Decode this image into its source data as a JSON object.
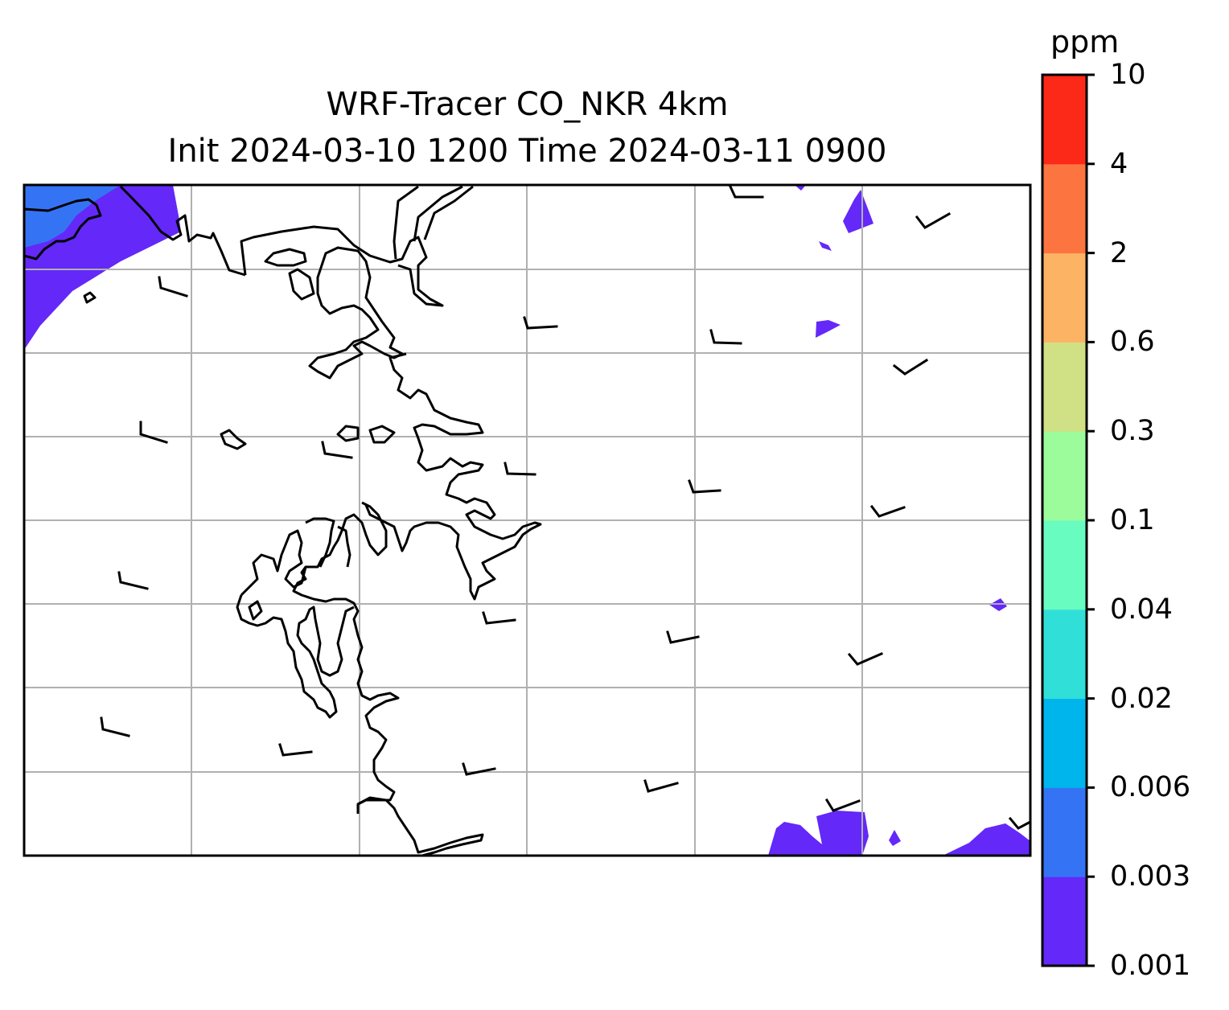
{
  "title_line1": "WRF-Tracer CO_NKR 4km",
  "title_line2": "Init 2024-03-10 1200 Time 2024-03-11 0900",
  "colorbar": {
    "unit": "ppm",
    "levels": [
      "0.001",
      "0.003",
      "0.006",
      "0.02",
      "0.04",
      "0.1",
      "0.3",
      "0.6",
      "2",
      "4",
      "10"
    ],
    "colors": [
      "#6428f8",
      "#3474f4",
      "#00b4ec",
      "#30e0d8",
      "#68fcc0",
      "#9cfc9c",
      "#d0e084",
      "#fcb464",
      "#fc7440",
      "#fc2818"
    ]
  },
  "map": {
    "gridlines": true,
    "wind_barbs": true,
    "coastline_color": "#000000"
  }
}
